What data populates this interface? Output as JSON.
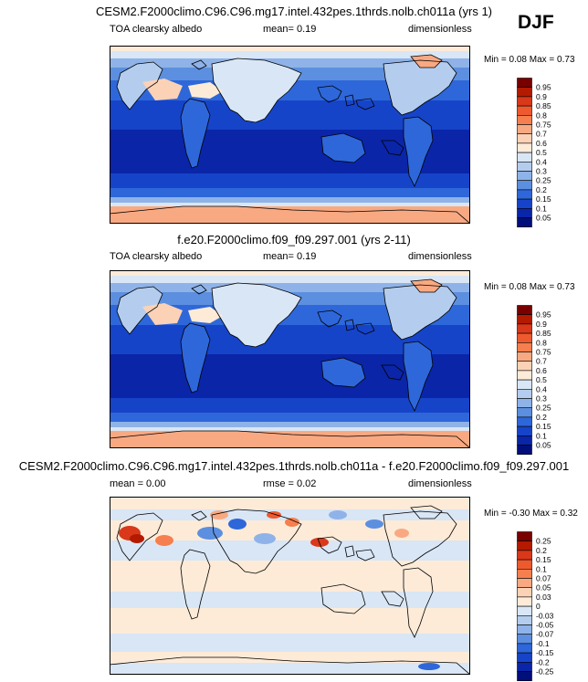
{
  "season": "DJF",
  "panels": [
    {
      "title": "CESM2.F2000climo.C96.C96.mg17.intel.432pes.1thrds.nolb.ch011a (yrs 1)",
      "left_label": "TOA clearsky albedo",
      "center_label": "mean=  0.19",
      "right_label": "dimensionless",
      "minmax": "Min =  0.08 Max =  0.73",
      "colorbar": {
        "levels": [
          "0.95",
          "0.9",
          "0.85",
          "0.8",
          "0.75",
          "0.7",
          "0.6",
          "0.5",
          "0.4",
          "0.3",
          "0.25",
          "0.2",
          "0.15",
          "0.1",
          "0.05"
        ],
        "colors": [
          "#7a0000",
          "#b31a00",
          "#d9381a",
          "#ee5a2e",
          "#f57f4e",
          "#f9a982",
          "#fcd2b6",
          "#fdebd8",
          "#d9e6f5",
          "#b4cdee",
          "#8fb3e8",
          "#5c8fdf",
          "#2e67d9",
          "#1644c9",
          "#0a25a8",
          "#000f7a"
        ]
      }
    },
    {
      "title": "f.e20.F2000climo.f09_f09.297.001 (yrs 2-11)",
      "left_label": "TOA clearsky albedo",
      "center_label": "mean=  0.19",
      "right_label": "dimensionless",
      "minmax": "Min =  0.08 Max =  0.73",
      "colorbar": {
        "levels": [
          "0.95",
          "0.9",
          "0.85",
          "0.8",
          "0.75",
          "0.7",
          "0.6",
          "0.5",
          "0.4",
          "0.3",
          "0.25",
          "0.2",
          "0.15",
          "0.1",
          "0.05"
        ],
        "colors": [
          "#7a0000",
          "#b31a00",
          "#d9381a",
          "#ee5a2e",
          "#f57f4e",
          "#f9a982",
          "#fcd2b6",
          "#fdebd8",
          "#d9e6f5",
          "#b4cdee",
          "#8fb3e8",
          "#5c8fdf",
          "#2e67d9",
          "#1644c9",
          "#0a25a8",
          "#000f7a"
        ]
      }
    },
    {
      "title": "CESM2.F2000climo.C96.C96.mg17.intel.432pes.1thrds.nolb.ch011a - f.e20.F2000climo.f09_f09.297.001",
      "left_label": "mean =  0.00",
      "center_label": "rmse =  0.02",
      "right_label": "dimensionless",
      "minmax": "Min = -0.30 Max =  0.32",
      "colorbar": {
        "levels": [
          "0.25",
          "0.2",
          "0.15",
          "0.1",
          "0.07",
          "0.05",
          "0.03",
          "0",
          "-0.03",
          "-0.05",
          "-0.07",
          "-0.1",
          "-0.15",
          "-0.2",
          "-0.25"
        ],
        "colors": [
          "#7a0000",
          "#b31a00",
          "#d9381a",
          "#ee5a2e",
          "#f57f4e",
          "#f9a982",
          "#fcd2b6",
          "#fdebd8",
          "#d9e6f5",
          "#b4cdee",
          "#8fb3e8",
          "#5c8fdf",
          "#2e67d9",
          "#1644c9",
          "#0a25a8",
          "#000f7a"
        ]
      }
    }
  ],
  "chart_data": [
    {
      "type": "heatmap",
      "title": "CESM2.F2000climo.C96.C96.mg17.intel.432pes.1thrds.nolb.ch011a (yrs 1)",
      "variable": "TOA clearsky albedo",
      "units": "dimensionless",
      "mean": 0.19,
      "min": 0.08,
      "max": 0.73,
      "contour_levels": [
        0.05,
        0.1,
        0.15,
        0.2,
        0.25,
        0.3,
        0.4,
        0.5,
        0.6,
        0.7,
        0.75,
        0.8,
        0.85,
        0.9,
        0.95
      ]
    },
    {
      "type": "heatmap",
      "title": "f.e20.F2000climo.f09_f09.297.001 (yrs 2-11)",
      "variable": "TOA clearsky albedo",
      "units": "dimensionless",
      "mean": 0.19,
      "min": 0.08,
      "max": 0.73,
      "contour_levels": [
        0.05,
        0.1,
        0.15,
        0.2,
        0.25,
        0.3,
        0.4,
        0.5,
        0.6,
        0.7,
        0.75,
        0.8,
        0.85,
        0.9,
        0.95
      ]
    },
    {
      "type": "heatmap",
      "title": "CESM2.F2000climo.C96.C96.mg17.intel.432pes.1thrds.nolb.ch011a - f.e20.F2000climo.f09_f09.297.001",
      "units": "dimensionless",
      "mean": 0.0,
      "rmse": 0.02,
      "min": -0.3,
      "max": 0.32,
      "contour_levels": [
        -0.25,
        -0.2,
        -0.15,
        -0.1,
        -0.07,
        -0.05,
        -0.03,
        0,
        0.03,
        0.05,
        0.07,
        0.1,
        0.15,
        0.2,
        0.25
      ]
    }
  ]
}
